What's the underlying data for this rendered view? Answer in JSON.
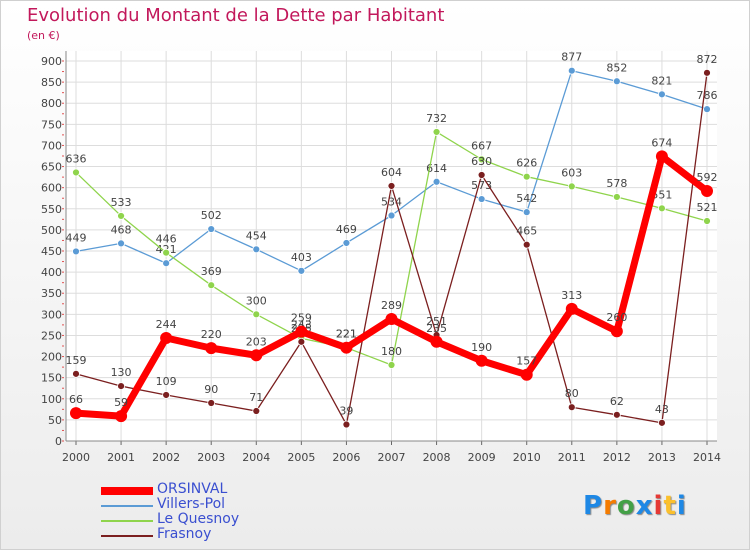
{
  "title": "Evolution du Montant de la Dette par Habitant",
  "subtitle": "(en €)",
  "logo": {
    "text": "Proxiti",
    "letter_colors": [
      "#1e88e5",
      "#f57c00",
      "#43a047",
      "#1e88e5",
      "#e53935",
      "#fbc02d",
      "#1e88e5"
    ]
  },
  "chart_data": {
    "type": "line",
    "x": [
      "2000",
      "2001",
      "2002",
      "2003",
      "2004",
      "2005",
      "2006",
      "2007",
      "2008",
      "2009",
      "2010",
      "2011",
      "2012",
      "2013",
      "2014"
    ],
    "yticks": [
      0,
      50,
      100,
      150,
      200,
      250,
      300,
      350,
      400,
      450,
      500,
      550,
      600,
      650,
      700,
      750,
      800,
      850,
      900
    ],
    "ylim": [
      0,
      900
    ],
    "grid": true,
    "legend_position": "bottom-left",
    "series": [
      {
        "name": "ORSINVAL",
        "color": "#ff0000",
        "values": [
          66,
          59,
          244,
          220,
          203,
          259,
          221,
          289,
          235,
          190,
          157,
          313,
          260,
          674,
          592
        ]
      },
      {
        "name": "Villers-Pol",
        "color": "#5b9bd5",
        "values": [
          449,
          468,
          421,
          502,
          454,
          403,
          469,
          534,
          614,
          573,
          542,
          877,
          852,
          821,
          786
        ]
      },
      {
        "name": "Le Quesnoy",
        "color": "#8fd44c",
        "values": [
          636,
          533,
          446,
          369,
          300,
          243,
          221,
          180,
          732,
          667,
          626,
          603,
          578,
          551,
          521
        ]
      },
      {
        "name": "Frasnoy",
        "color": "#7b1f1f",
        "values": [
          159,
          130,
          109,
          90,
          71,
          235,
          39,
          604,
          251,
          630,
          465,
          80,
          62,
          43,
          872
        ]
      }
    ]
  }
}
